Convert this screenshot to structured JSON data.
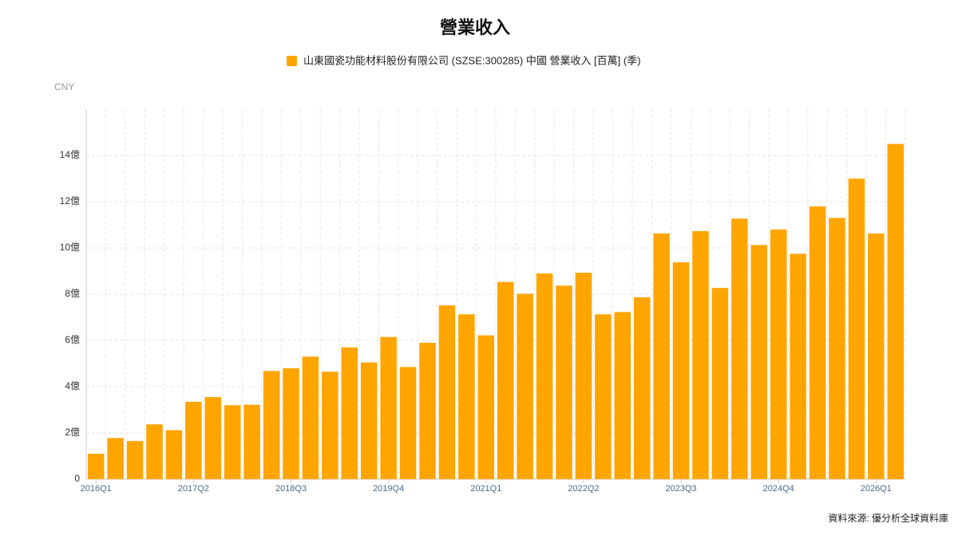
{
  "chart_data": {
    "type": "bar",
    "title": "營業收入",
    "legend": "山東國瓷功能材料股份有限公司 (SZSE:300285) 中國 營業收入 [百萬] (季)",
    "unit_label": "CNY",
    "source": "資料來源: 優分析全球資料庫",
    "color": "#ffa500",
    "categories": [
      "2016Q1",
      null,
      null,
      null,
      null,
      "2017Q2",
      null,
      null,
      null,
      null,
      "2018Q3",
      null,
      null,
      null,
      null,
      "2019Q4",
      null,
      null,
      null,
      null,
      "2021Q1",
      null,
      null,
      null,
      null,
      "2022Q2",
      null,
      null,
      null,
      null,
      "2023Q3",
      null,
      null,
      null,
      null,
      "2024Q4",
      null,
      null,
      null,
      null,
      "2026Q1",
      null
    ],
    "values": [
      1.1,
      1.78,
      1.65,
      2.37,
      2.12,
      3.35,
      3.55,
      3.2,
      3.22,
      4.68,
      4.8,
      5.3,
      4.65,
      5.7,
      5.05,
      6.15,
      4.85,
      5.9,
      7.52,
      7.13,
      6.22,
      8.53,
      8.02,
      8.9,
      8.37,
      8.93,
      7.13,
      7.23,
      7.87,
      10.63,
      9.38,
      10.73,
      8.27,
      11.27,
      10.13,
      10.8,
      9.75,
      11.8,
      11.3,
      13.0,
      10.63,
      14.5
    ],
    "ylim": [
      0,
      16
    ],
    "yticks": [
      0,
      {
        "value": 2,
        "label": "2億"
      },
      {
        "value": 4,
        "label": "4億"
      },
      {
        "value": 6,
        "label": "6億"
      },
      {
        "value": 8,
        "label": "8億"
      },
      {
        "value": 10,
        "label": "10億"
      },
      {
        "value": 12,
        "label": "12億"
      },
      {
        "value": 14,
        "label": "14億"
      }
    ],
    "grid": true
  }
}
